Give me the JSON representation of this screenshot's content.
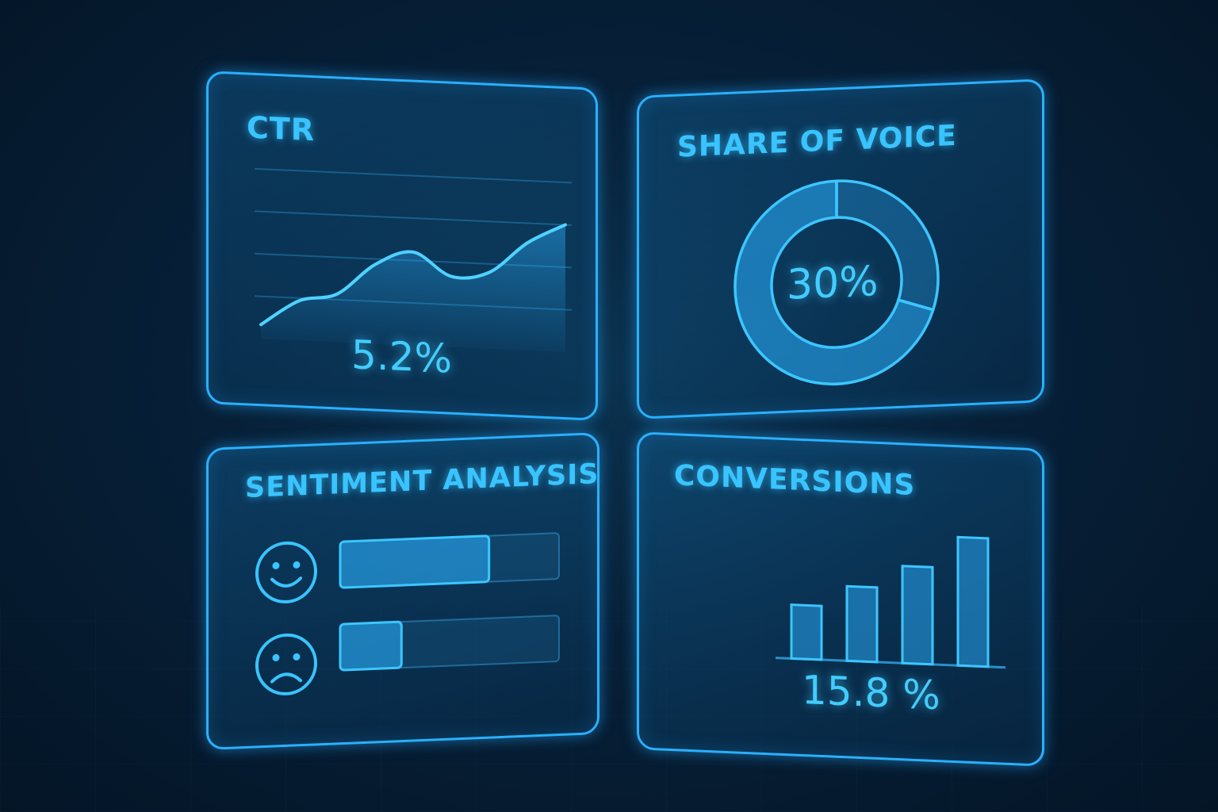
{
  "colors": {
    "accent": "#2ab0ff",
    "text": "#39c4ff",
    "background": "#072038"
  },
  "ctr": {
    "title": "CTR",
    "value": "5.2%"
  },
  "share_of_voice": {
    "title": "SHARE OF VOICE",
    "value": "30%"
  },
  "sentiment": {
    "title": "SENTIMENT ANALYSIS",
    "rows": [
      {
        "icon": "smiley-face-icon",
        "fill": 0.68
      },
      {
        "icon": "sad-face-icon",
        "fill": 0.28
      }
    ]
  },
  "conversions": {
    "title": "CONVERSIONS",
    "value": "15.8 %"
  },
  "chart_data": [
    {
      "type": "area",
      "title": "CTR",
      "x": [
        0,
        1,
        2,
        3,
        4,
        5,
        6,
        7,
        8
      ],
      "values": [
        5,
        14,
        17,
        28,
        33,
        25,
        27,
        38,
        45
      ],
      "ylim": [
        0,
        60
      ],
      "grid": true
    },
    {
      "type": "pie",
      "title": "SHARE OF VOICE",
      "donut": true,
      "slices": [
        0.3,
        0.7
      ],
      "center_label": "30%"
    },
    {
      "type": "bar",
      "title": "SENTIMENT ANALYSIS",
      "categories": [
        "positive",
        "negative"
      ],
      "values": [
        0.68,
        0.28
      ],
      "orientation": "horizontal"
    },
    {
      "type": "bar",
      "title": "CONVERSIONS",
      "values": [
        6.2,
        8.6,
        11.2,
        14.8
      ],
      "ylim": [
        0,
        16
      ]
    }
  ]
}
